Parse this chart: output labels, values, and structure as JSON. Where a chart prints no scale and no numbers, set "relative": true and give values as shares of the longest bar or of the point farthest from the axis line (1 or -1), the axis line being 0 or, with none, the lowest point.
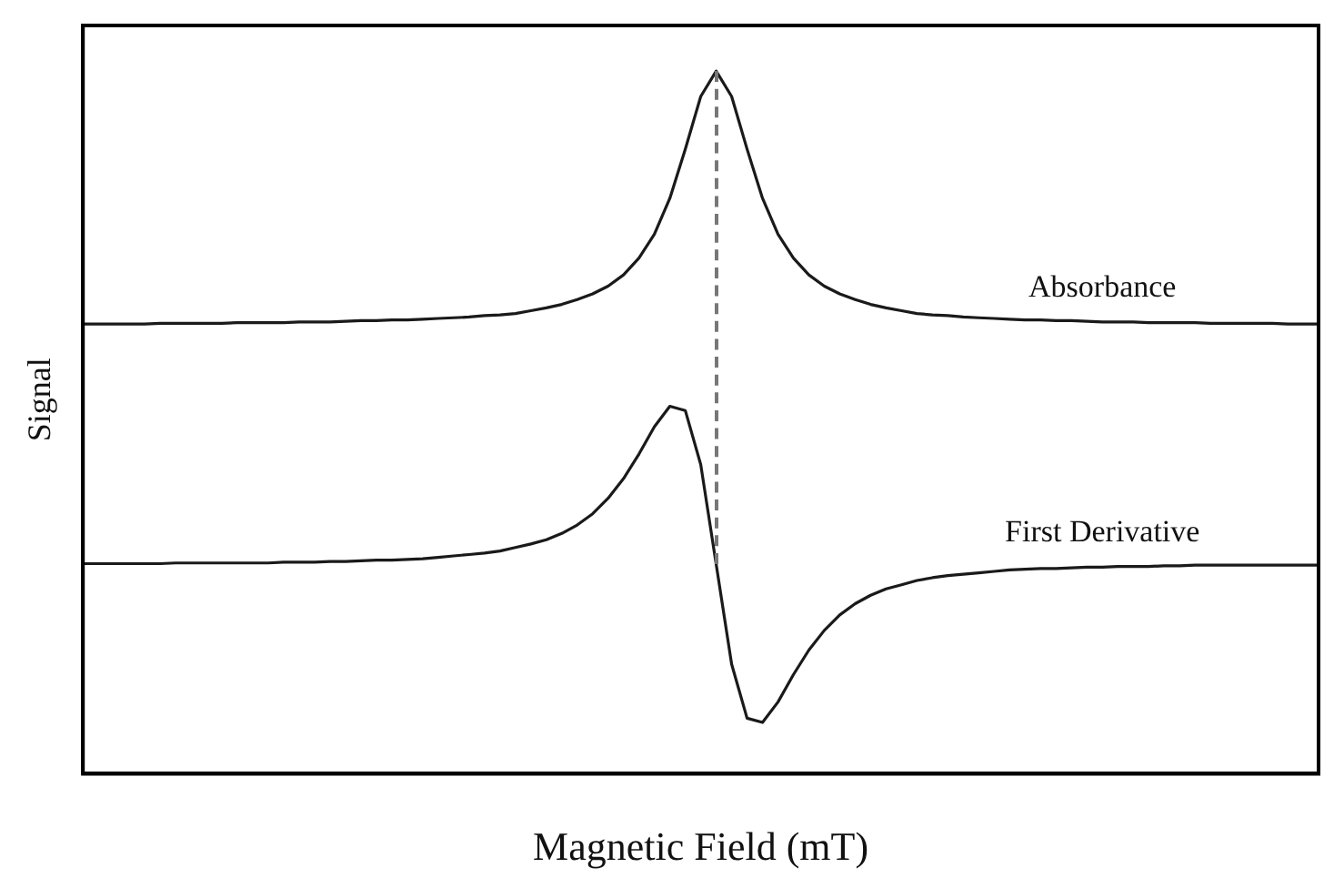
{
  "chart_data": {
    "type": "line",
    "relative": true,
    "xlabel": "Magnetic Field (mT)",
    "ylabel": "Signal",
    "legend": false,
    "grid": false,
    "marker": "none",
    "line_style": "solid",
    "categories": [
      null,
      null,
      null,
      null,
      null,
      null,
      null,
      null,
      null,
      null,
      null,
      null,
      null,
      null,
      null,
      null,
      null,
      null,
      null,
      null,
      null,
      null,
      null,
      null,
      null,
      null,
      null,
      null,
      null,
      null,
      null,
      null,
      null,
      null,
      null,
      null,
      null,
      null,
      null,
      null,
      null,
      null,
      null,
      null,
      null,
      null,
      null,
      null,
      null,
      null,
      null,
      null,
      null,
      null,
      null,
      null,
      null,
      null,
      null,
      null,
      null,
      null,
      null,
      null,
      null,
      null,
      null,
      null,
      null,
      null,
      null,
      null,
      null,
      null,
      null,
      null,
      null,
      null,
      null,
      null,
      null
    ],
    "series": [
      {
        "name": "Absorbance",
        "color": "#1a1a1a",
        "values": [
          0.64,
          0.64,
          0.64,
          0.64,
          0.64,
          0.641,
          0.641,
          0.641,
          0.641,
          0.641,
          0.642,
          0.642,
          0.642,
          0.642,
          0.643,
          0.643,
          0.643,
          0.644,
          0.645,
          0.645,
          0.646,
          0.646,
          0.647,
          0.648,
          0.649,
          0.65,
          0.652,
          0.653,
          0.655,
          0.659,
          0.663,
          0.668,
          0.675,
          0.683,
          0.694,
          0.71,
          0.734,
          0.768,
          0.819,
          0.889,
          0.964,
          1,
          0.964,
          0.889,
          0.819,
          0.768,
          0.734,
          0.71,
          0.694,
          0.683,
          0.675,
          0.668,
          0.663,
          0.659,
          0.655,
          0.653,
          0.652,
          0.65,
          0.649,
          0.648,
          0.647,
          0.646,
          0.646,
          0.645,
          0.645,
          0.644,
          0.643,
          0.643,
          0.643,
          0.642,
          0.642,
          0.642,
          0.642,
          0.641,
          0.641,
          0.641,
          0.641,
          0.641,
          0.64,
          0.64,
          0.64
        ]
      },
      {
        "name": "First Derivative",
        "color": "#1a1a1a",
        "values": [
          0.299,
          0.299,
          0.299,
          0.299,
          0.299,
          0.299,
          0.3,
          0.3,
          0.3,
          0.3,
          0.3,
          0.3,
          0.3,
          0.301,
          0.301,
          0.301,
          0.302,
          0.302,
          0.303,
          0.304,
          0.304,
          0.305,
          0.306,
          0.308,
          0.31,
          0.312,
          0.314,
          0.317,
          0.322,
          0.327,
          0.333,
          0.342,
          0.354,
          0.37,
          0.392,
          0.42,
          0.455,
          0.494,
          0.523,
          0.517,
          0.44,
          0.298,
          0.156,
          0.079,
          0.073,
          0.102,
          0.141,
          0.176,
          0.204,
          0.226,
          0.242,
          0.254,
          0.263,
          0.269,
          0.275,
          0.279,
          0.282,
          0.284,
          0.286,
          0.288,
          0.29,
          0.291,
          0.292,
          0.292,
          0.293,
          0.294,
          0.294,
          0.295,
          0.295,
          0.295,
          0.296,
          0.296,
          0.297,
          0.297,
          0.297,
          0.297,
          0.297,
          0.297,
          0.297,
          0.297,
          0.297
        ]
      }
    ]
  }
}
